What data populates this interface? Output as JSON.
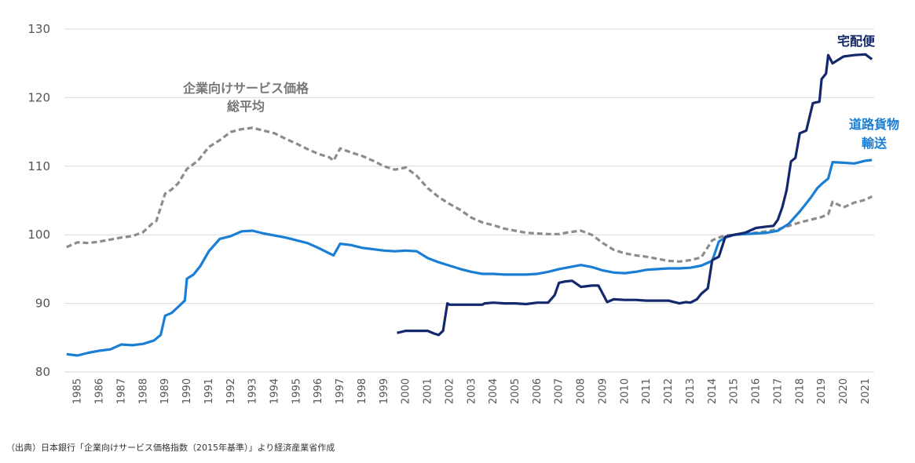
{
  "chart_data": {
    "type": "line",
    "title": "",
    "xlabel": "",
    "ylabel": "",
    "xlim": [
      1984.4,
      2021.4
    ],
    "ylim": [
      80,
      130
    ],
    "yticks": [
      80,
      90,
      100,
      110,
      120,
      130
    ],
    "xticks": [
      "1985",
      "1986",
      "1987",
      "1988",
      "1989",
      "1990",
      "1991",
      "1992",
      "1993",
      "1994",
      "1995",
      "1996",
      "1997",
      "1998",
      "1999",
      "2000",
      "2001",
      "2002",
      "2003",
      "2004",
      "2005",
      "2006",
      "2007",
      "2008",
      "2009",
      "2010",
      "2011",
      "2012",
      "2013",
      "2014",
      "2015",
      "2016",
      "2017",
      "2018",
      "2019",
      "2020",
      "2021"
    ],
    "grid": "horizontal",
    "legend": "inline labels",
    "series": [
      {
        "name": "企業向けサービス価格総平均",
        "label_lines": [
          "企業向けサービス価格",
          "総平均"
        ],
        "color": "#8c8c8c",
        "dash": true,
        "x": [
          1984.5,
          1985.0,
          1985.5,
          1986.0,
          1986.5,
          1987.0,
          1987.5,
          1988.0,
          1988.4,
          1988.6,
          1989.0,
          1989.3,
          1989.6,
          1990.0,
          1990.5,
          1991.0,
          1991.5,
          1992.0,
          1992.5,
          1993.0,
          1993.5,
          1994.0,
          1994.5,
          1995.0,
          1995.5,
          1996.0,
          1996.5,
          1996.7,
          1997.0,
          1997.5,
          1998.0,
          1998.5,
          1999.0,
          1999.5,
          2000.0,
          2000.5,
          2001.0,
          2001.5,
          2002.0,
          2002.5,
          2003.0,
          2003.5,
          2004.0,
          2004.5,
          2005.0,
          2005.5,
          2006.0,
          2006.5,
          2007.0,
          2007.5,
          2008.0,
          2008.5,
          2009.0,
          2009.5,
          2010.0,
          2010.5,
          2011.0,
          2011.5,
          2012.0,
          2012.5,
          2013.0,
          2013.5,
          2014.0,
          2014.3,
          2014.6,
          2015.0,
          2015.5,
          2016.0,
          2016.5,
          2017.0,
          2017.5,
          2018.0,
          2018.5,
          2019.0,
          2019.3,
          2019.5,
          2020.0,
          2020.5,
          2021.0,
          2021.3
        ],
        "values": [
          98.2,
          98.9,
          98.8,
          99.0,
          99.3,
          99.6,
          99.8,
          100.4,
          101.6,
          102.0,
          106.0,
          106.6,
          107.5,
          109.6,
          110.8,
          112.8,
          113.8,
          115.0,
          115.4,
          115.6,
          115.2,
          114.8,
          114.0,
          113.3,
          112.5,
          111.8,
          111.3,
          110.8,
          112.6,
          112.0,
          111.5,
          110.8,
          110.0,
          109.5,
          109.8,
          108.6,
          106.8,
          105.5,
          104.5,
          103.6,
          102.5,
          101.8,
          101.4,
          100.9,
          100.6,
          100.3,
          100.2,
          100.1,
          100.1,
          100.4,
          100.6,
          100.0,
          98.8,
          97.8,
          97.3,
          97.0,
          96.8,
          96.5,
          96.2,
          96.1,
          96.3,
          96.7,
          99.2,
          99.6,
          99.9,
          100.0,
          100.1,
          100.3,
          100.5,
          100.8,
          101.3,
          101.8,
          102.2,
          102.6,
          103.0,
          104.8,
          104.0,
          104.7,
          105.1,
          105.6
        ]
      },
      {
        "name": "道路貨物輸送",
        "label_lines": [
          "道路貨物",
          "輸送"
        ],
        "color": "#1a7fd4",
        "dash": false,
        "x": [
          1984.5,
          1985.0,
          1985.5,
          1986.0,
          1986.5,
          1987.0,
          1987.5,
          1988.0,
          1988.5,
          1988.8,
          1989.0,
          1989.3,
          1989.6,
          1989.9,
          1990.0,
          1990.3,
          1990.6,
          1991.0,
          1991.5,
          1992.0,
          1992.5,
          1993.0,
          1993.5,
          1994.0,
          1994.5,
          1995.0,
          1995.5,
          1996.0,
          1996.5,
          1996.7,
          1997.0,
          1997.5,
          1998.0,
          1998.5,
          1999.0,
          1999.5,
          2000.0,
          2000.5,
          2001.0,
          2001.5,
          2002.0,
          2002.5,
          2003.0,
          2003.5,
          2004.0,
          2004.5,
          2005.0,
          2005.5,
          2006.0,
          2006.5,
          2007.0,
          2007.5,
          2008.0,
          2008.5,
          2009.0,
          2009.5,
          2010.0,
          2010.5,
          2011.0,
          2011.5,
          2012.0,
          2012.5,
          2013.0,
          2013.5,
          2014.0,
          2014.3,
          2014.6,
          2015.0,
          2015.5,
          2016.0,
          2016.5,
          2017.0,
          2017.5,
          2018.0,
          2018.5,
          2018.8,
          2019.0,
          2019.3,
          2019.5,
          2020.0,
          2020.5,
          2021.0,
          2021.3
        ],
        "values": [
          82.6,
          82.4,
          82.8,
          83.1,
          83.3,
          84.0,
          83.9,
          84.1,
          84.6,
          85.4,
          88.2,
          88.6,
          89.5,
          90.4,
          93.6,
          94.2,
          95.4,
          97.6,
          99.4,
          99.8,
          100.5,
          100.6,
          100.2,
          99.9,
          99.6,
          99.2,
          98.8,
          98.1,
          97.3,
          97.0,
          98.7,
          98.5,
          98.1,
          97.9,
          97.7,
          97.6,
          97.7,
          97.6,
          96.6,
          96.0,
          95.5,
          95.0,
          94.6,
          94.3,
          94.3,
          94.2,
          94.2,
          94.2,
          94.3,
          94.6,
          95.0,
          95.3,
          95.6,
          95.3,
          94.8,
          94.5,
          94.4,
          94.6,
          94.9,
          95.0,
          95.1,
          95.1,
          95.2,
          95.5,
          96.2,
          99.0,
          99.6,
          100.0,
          100.1,
          100.2,
          100.3,
          100.6,
          101.6,
          103.4,
          105.4,
          106.8,
          107.4,
          108.2,
          110.6,
          110.5,
          110.4,
          110.8,
          110.9
        ]
      },
      {
        "name": "宅配便",
        "label_lines": [
          "宅配便"
        ],
        "color": "#14286e",
        "dash": false,
        "x": [
          1999.6,
          2000.0,
          2000.5,
          2001.0,
          2001.3,
          2001.5,
          2001.7,
          2001.9,
          2002.0,
          2002.5,
          2003.0,
          2003.5,
          2003.6,
          2004.0,
          2004.5,
          2005.0,
          2005.5,
          2006.0,
          2006.5,
          2006.8,
          2007.0,
          2007.3,
          2007.6,
          2008.0,
          2008.5,
          2008.8,
          2009.0,
          2009.2,
          2009.5,
          2010.0,
          2010.5,
          2011.0,
          2011.5,
          2012.0,
          2012.5,
          2012.8,
          2013.0,
          2013.3,
          2013.5,
          2013.8,
          2014.0,
          2014.3,
          2014.6,
          2015.0,
          2015.5,
          2016.0,
          2016.5,
          2016.8,
          2017.0,
          2017.2,
          2017.4,
          2017.6,
          2017.8,
          2018.0,
          2018.3,
          2018.6,
          2018.9,
          2019.0,
          2019.2,
          2019.3,
          2019.5,
          2019.8,
          2020.0,
          2020.5,
          2021.0,
          2021.3
        ],
        "values": [
          85.7,
          86.0,
          86.0,
          86.0,
          85.6,
          85.4,
          86.0,
          90.0,
          89.8,
          89.8,
          89.8,
          89.8,
          90.0,
          90.1,
          90.0,
          90.0,
          89.9,
          90.1,
          90.1,
          91.2,
          93.0,
          93.2,
          93.3,
          92.4,
          92.6,
          92.6,
          91.4,
          90.2,
          90.6,
          90.5,
          90.5,
          90.4,
          90.4,
          90.4,
          90.0,
          90.2,
          90.1,
          90.6,
          91.4,
          92.2,
          96.3,
          96.8,
          99.7,
          100.0,
          100.3,
          101.0,
          101.2,
          101.3,
          102.2,
          104.0,
          106.5,
          110.7,
          111.2,
          114.8,
          115.2,
          119.2,
          119.4,
          122.7,
          123.5,
          126.2,
          125.0,
          125.6,
          126.0,
          126.2,
          126.3,
          125.6
        ]
      }
    ]
  },
  "source_note": "（出典）日本銀行「企業向けサービス価格指数（2015年基準）」より経済産業省作成"
}
